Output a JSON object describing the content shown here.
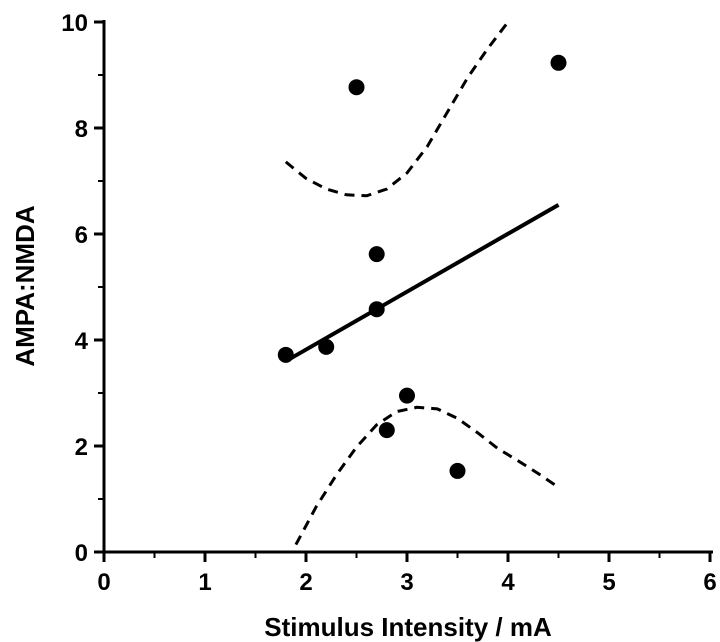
{
  "chart_data": {
    "type": "scatter",
    "xlabel": "Stimulus Intensity / mA",
    "ylabel": "AMPA:NMDA",
    "xlim": [
      0,
      6
    ],
    "ylim": [
      0,
      10
    ],
    "xticks": [
      "0",
      "1",
      "2",
      "3",
      "4",
      "5",
      "6"
    ],
    "yticks": [
      "0",
      "2",
      "4",
      "6",
      "8",
      "10"
    ],
    "points": [
      {
        "x": 1.8,
        "y": 3.72
      },
      {
        "x": 2.2,
        "y": 3.87
      },
      {
        "x": 2.5,
        "y": 8.77
      },
      {
        "x": 2.7,
        "y": 5.62
      },
      {
        "x": 2.7,
        "y": 4.58
      },
      {
        "x": 2.8,
        "y": 2.3
      },
      {
        "x": 3.0,
        "y": 2.95
      },
      {
        "x": 3.5,
        "y": 1.53
      },
      {
        "x": 4.5,
        "y": 9.23
      }
    ],
    "fit_line": [
      {
        "x": 1.8,
        "y": 3.6
      },
      {
        "x": 4.5,
        "y": 6.55
      }
    ],
    "confidence_upper": [
      {
        "x": 1.8,
        "y": 7.36
      },
      {
        "x": 2.0,
        "y": 7.05
      },
      {
        "x": 2.2,
        "y": 6.85
      },
      {
        "x": 2.4,
        "y": 6.74
      },
      {
        "x": 2.6,
        "y": 6.72
      },
      {
        "x": 2.8,
        "y": 6.85
      },
      {
        "x": 3.0,
        "y": 7.15
      },
      {
        "x": 3.2,
        "y": 7.65
      },
      {
        "x": 3.4,
        "y": 8.3
      },
      {
        "x": 3.6,
        "y": 8.95
      },
      {
        "x": 3.8,
        "y": 9.5
      },
      {
        "x": 4.0,
        "y": 10.0
      }
    ],
    "confidence_lower": [
      {
        "x": 1.9,
        "y": 0.14
      },
      {
        "x": 2.1,
        "y": 0.85
      },
      {
        "x": 2.3,
        "y": 1.45
      },
      {
        "x": 2.5,
        "y": 1.98
      },
      {
        "x": 2.7,
        "y": 2.4
      },
      {
        "x": 2.9,
        "y": 2.65
      },
      {
        "x": 3.1,
        "y": 2.73
      },
      {
        "x": 3.3,
        "y": 2.7
      },
      {
        "x": 3.5,
        "y": 2.52
      },
      {
        "x": 3.7,
        "y": 2.25
      },
      {
        "x": 3.9,
        "y": 1.95
      },
      {
        "x": 4.1,
        "y": 1.72
      },
      {
        "x": 4.3,
        "y": 1.48
      },
      {
        "x": 4.5,
        "y": 1.22
      }
    ],
    "grid": false,
    "legend": "none"
  }
}
